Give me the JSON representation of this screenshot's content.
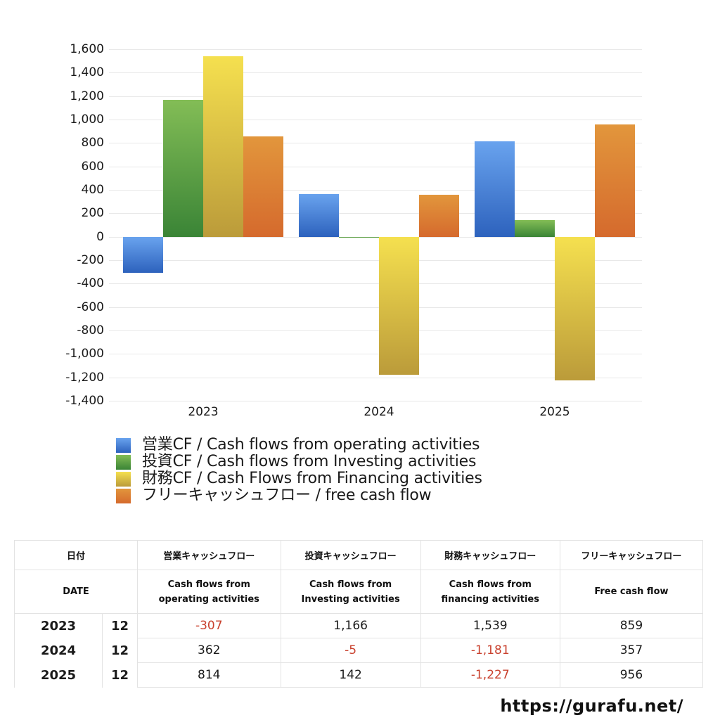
{
  "chart_data": {
    "type": "bar",
    "title": "",
    "xlabel": "",
    "ylabel": "",
    "categories": [
      "2023",
      "2024",
      "2025"
    ],
    "series": [
      {
        "name": "営業CF / Cash flows from operating activities",
        "color": "#4a86dc",
        "values": [
          -307,
          362,
          814
        ]
      },
      {
        "name": "投資CF / Cash flows from Investing activities",
        "color": "#5ea046",
        "values": [
          1166,
          -5,
          142
        ]
      },
      {
        "name": "財務CF / Cash Flows from Financing activities",
        "color": "#e0c448",
        "values": [
          1539,
          -1181,
          -1227
        ]
      },
      {
        "name": "フリーキャッシュフロー / free cash flow",
        "color": "#dc7f34",
        "values": [
          859,
          357,
          956
        ]
      }
    ],
    "ylim": [
      -1400,
      1600
    ],
    "yticks": [
      "1,600",
      "1,400",
      "1,200",
      "1,000",
      "800",
      "600",
      "400",
      "200",
      "0",
      "-200",
      "-400",
      "-600",
      "-800",
      "-1,000",
      "-1,200",
      "-1,400"
    ],
    "grid": true,
    "legend_position": "bottom"
  },
  "legend": [
    "営業CF / Cash flows from operating activities",
    "投資CF / Cash flows from Investing activities",
    "財務CF / Cash Flows from Financing activities",
    "フリーキャッシュフロー / free cash flow"
  ],
  "table": {
    "header_jp": [
      "日付",
      "営業キャッシュフロー",
      "投資キャッシュフロー",
      "財務キャッシュフロー",
      "フリーキャッシュフロー"
    ],
    "header_en": [
      "DATE",
      "Cash flows from\noperating activities",
      "Cash flows from\nInvesting activities",
      "Cash flows from\nfinancing activities",
      "Free cash flow"
    ],
    "rows": [
      {
        "year": "2023",
        "month": "12",
        "values": [
          "-307",
          "1,166",
          "1,539",
          "859"
        ]
      },
      {
        "year": "2024",
        "month": "12",
        "values": [
          "362",
          "-5",
          "-1,181",
          "357"
        ]
      },
      {
        "year": "2025",
        "month": "12",
        "values": [
          "814",
          "142",
          "-1,227",
          "956"
        ]
      }
    ]
  },
  "footer": {
    "url": "https://gurafu.net/"
  }
}
